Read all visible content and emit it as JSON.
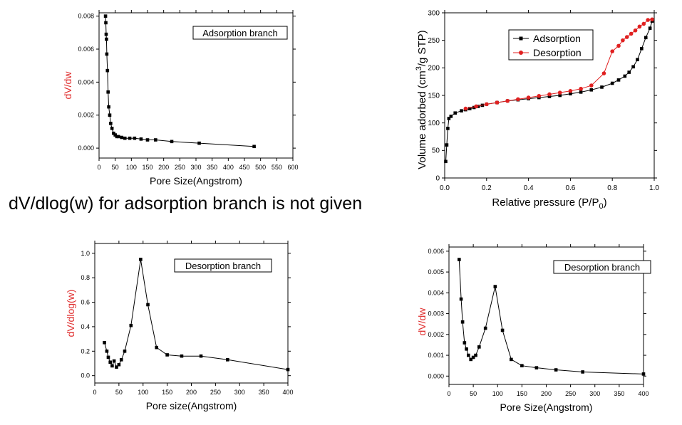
{
  "note": "dV/dlog(w) for adsorption branch is not given",
  "chart_data": [
    {
      "type": "line",
      "title": "Adsorption branch",
      "xlabel": "Pore Size(Angstrom)",
      "ylabel": "dV/dw",
      "xlim": [
        0,
        600
      ],
      "ylim": [
        -0.0006,
        0.0082
      ],
      "xticks": [
        0,
        50,
        100,
        150,
        200,
        250,
        300,
        350,
        400,
        450,
        500,
        550,
        600
      ],
      "yticks": [
        0.0,
        0.002,
        0.004,
        0.006,
        0.008
      ],
      "ytick_labels": [
        "0.000",
        "0.002",
        "0.004",
        "0.006",
        "0.008"
      ],
      "ylabel_color": "#e03030",
      "series": [
        {
          "color": "#000000",
          "x": [
            20,
            21,
            22,
            23,
            24,
            26,
            28,
            30,
            33,
            36,
            40,
            45,
            50,
            55,
            60,
            70,
            80,
            95,
            110,
            130,
            150,
            175,
            225,
            310,
            480
          ],
          "y": [
            0.008,
            0.0076,
            0.0069,
            0.0066,
            0.0057,
            0.0047,
            0.0034,
            0.0025,
            0.002,
            0.0015,
            0.0012,
            0.0009,
            0.0008,
            0.0007,
            0.0007,
            0.00065,
            0.0006,
            0.0006,
            0.0006,
            0.00055,
            0.0005,
            0.0005,
            0.0004,
            0.0003,
            0.0001
          ]
        }
      ]
    },
    {
      "type": "line",
      "title": "",
      "xlabel": "Relative pressure (P/P0)",
      "xlabel_main": "Relative pressure (P/P",
      "xlabel_sub": "0",
      "xlabel_end": ")",
      "ylabel": "Volume adorbed (cm3/g STP)",
      "ylabel_main": "Volume adorbed (cm",
      "ylabel_sup": "3",
      "ylabel_end": "/g STP)",
      "xlim": [
        0,
        1.0
      ],
      "ylim": [
        0,
        300
      ],
      "xticks": [
        0.0,
        0.2,
        0.4,
        0.6,
        0.8,
        1.0
      ],
      "xtick_labels": [
        "0.0",
        "0.2",
        "0.4",
        "0.6",
        "0.8",
        "1.0"
      ],
      "yticks": [
        0,
        50,
        100,
        150,
        200,
        250,
        300
      ],
      "legend": "top-left",
      "series": [
        {
          "name": "Adsorption",
          "color": "#000000",
          "marker": "square",
          "x": [
            0.005,
            0.01,
            0.015,
            0.02,
            0.03,
            0.05,
            0.08,
            0.1,
            0.12,
            0.14,
            0.16,
            0.18,
            0.2,
            0.25,
            0.3,
            0.35,
            0.4,
            0.45,
            0.5,
            0.55,
            0.6,
            0.65,
            0.7,
            0.75,
            0.8,
            0.83,
            0.86,
            0.88,
            0.9,
            0.92,
            0.94,
            0.96,
            0.98,
            0.99
          ],
          "y": [
            30,
            60,
            90,
            108,
            112,
            118,
            122,
            124,
            126,
            128,
            130,
            132,
            134,
            137,
            140,
            142,
            144,
            146,
            148,
            150,
            153,
            156,
            160,
            165,
            172,
            178,
            185,
            192,
            202,
            215,
            235,
            255,
            272,
            285
          ]
        },
        {
          "name": "Desorption",
          "color": "#e02020",
          "marker": "circle",
          "x": [
            0.99,
            0.97,
            0.95,
            0.93,
            0.91,
            0.89,
            0.87,
            0.85,
            0.83,
            0.8,
            0.76,
            0.7,
            0.65,
            0.6,
            0.55,
            0.5,
            0.45,
            0.4,
            0.35,
            0.3,
            0.25,
            0.2,
            0.15,
            0.1
          ],
          "y": [
            288,
            287,
            280,
            275,
            268,
            262,
            256,
            250,
            240,
            230,
            190,
            168,
            162,
            158,
            155,
            152,
            149,
            146,
            143,
            140,
            137,
            134,
            130,
            126
          ]
        }
      ]
    },
    {
      "type": "line",
      "title": "Desorption branch",
      "xlabel": "Pore size(Angstrom)",
      "ylabel": "dV/dlog(w)",
      "xlim": [
        0,
        400
      ],
      "ylim": [
        -0.06,
        1.08
      ],
      "xticks": [
        0,
        50,
        100,
        150,
        200,
        250,
        300,
        350,
        400
      ],
      "yticks": [
        0.0,
        0.2,
        0.4,
        0.6,
        0.8,
        1.0
      ],
      "ytick_labels": [
        "0.0",
        "0.2",
        "0.4",
        "0.6",
        "0.8",
        "1.0"
      ],
      "ylabel_color": "#e03030",
      "series": [
        {
          "color": "#000000",
          "x": [
            20,
            25,
            28,
            32,
            36,
            40,
            45,
            50,
            55,
            62,
            75,
            95,
            110,
            128,
            150,
            180,
            220,
            275,
            400
          ],
          "y": [
            0.27,
            0.2,
            0.15,
            0.11,
            0.08,
            0.12,
            0.07,
            0.09,
            0.13,
            0.2,
            0.41,
            0.95,
            0.58,
            0.23,
            0.17,
            0.16,
            0.16,
            0.13,
            0.05
          ]
        }
      ]
    },
    {
      "type": "line",
      "title": "Desorption branch",
      "xlabel": "Pore Size(Angstrom)",
      "ylabel": "dV/dw",
      "xlim": [
        0,
        400
      ],
      "ylim": [
        -0.0004,
        0.0062
      ],
      "xticks": [
        0,
        50,
        100,
        150,
        200,
        250,
        300,
        350,
        400
      ],
      "yticks": [
        0.0,
        0.001,
        0.002,
        0.003,
        0.004,
        0.005,
        0.006
      ],
      "ytick_labels": [
        "0.000",
        "0.001",
        "0.002",
        "0.003",
        "0.004",
        "0.005",
        "0.006"
      ],
      "ylabel_color": "#e03030",
      "series": [
        {
          "color": "#000000",
          "x": [
            21,
            25,
            28,
            32,
            36,
            40,
            45,
            50,
            55,
            62,
            75,
            95,
            110,
            128,
            150,
            180,
            220,
            275,
            400
          ],
          "y": [
            0.0056,
            0.0037,
            0.0026,
            0.0016,
            0.0013,
            0.001,
            0.0008,
            0.0009,
            0.001,
            0.0014,
            0.0023,
            0.0043,
            0.0022,
            0.0008,
            0.0005,
            0.0004,
            0.0003,
            0.0002,
            0.0001
          ]
        }
      ]
    }
  ]
}
